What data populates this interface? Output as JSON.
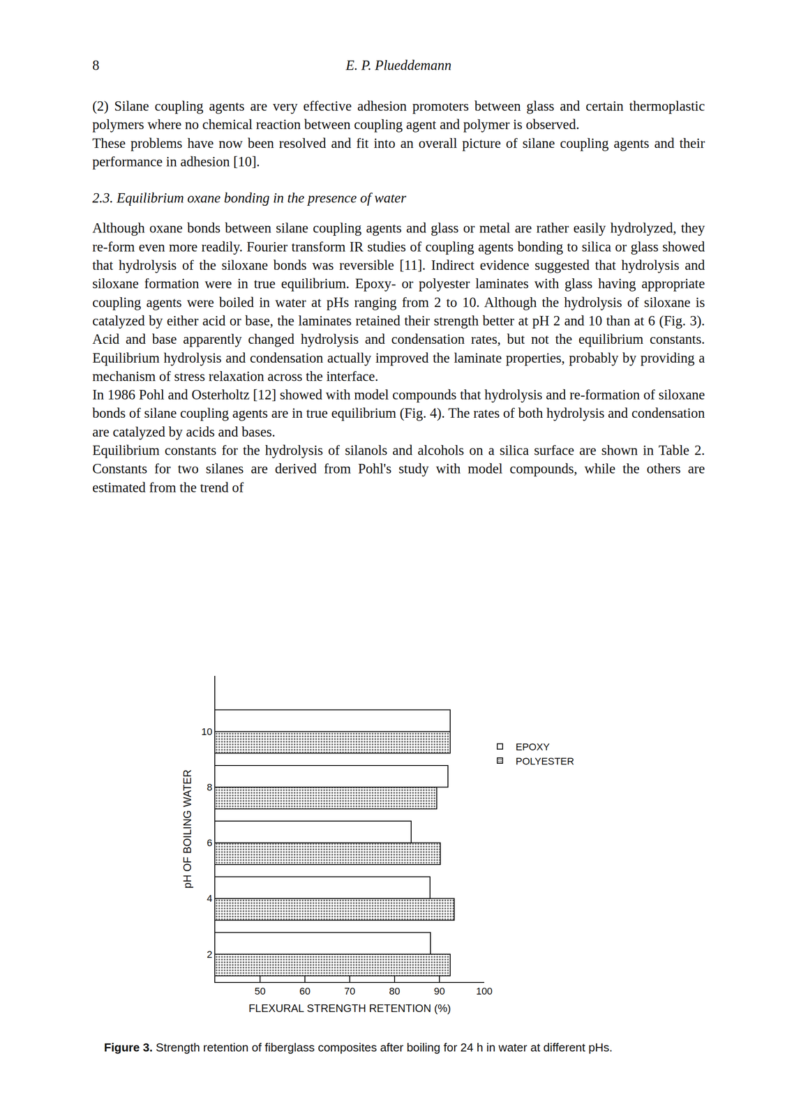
{
  "page": {
    "page_number": "8",
    "running_head": "E. P. Plueddemann",
    "blocks": [
      {
        "type": "paragraph",
        "text": "(2) Silane coupling agents are very effective adhesion promoters between glass and certain thermoplastic polymers where no chemical reaction between coupling agent and polymer is observed."
      },
      {
        "type": "paragraph",
        "text": "These problems have now been resolved and fit into an overall picture of silane coupling agents and their performance in adhesion [10]."
      },
      {
        "type": "heading",
        "text": "2.3. Equilibrium oxane bonding in the presence of water"
      },
      {
        "type": "paragraph",
        "text": "Although oxane bonds between silane coupling agents and glass or metal are rather easily hydrolyzed, they re-form even more readily. Fourier transform IR studies of coupling agents bonding to silica or glass showed that hydrolysis of the siloxane bonds was reversible [11]. Indirect evidence suggested that hydrolysis and siloxane formation were in true equilibrium. Epoxy- or polyester laminates with glass having appropriate coupling agents were boiled in water at pHs ranging from 2 to 10. Although the hydrolysis of siloxane is catalyzed by either acid or base, the laminates retained their strength better at pH 2 and 10 than at 6 (Fig. 3). Acid and base apparently changed hydrolysis and condensation rates, but not the equilibrium constants. Equilibrium hydrolysis and condensation actually improved the laminate properties, probably by providing a mechanism of stress relaxation across the interface."
      },
      {
        "type": "paragraph",
        "text": "In 1986 Pohl and Osterholtz [12] showed with model compounds that hydrolysis and re-formation of siloxane bonds of silane coupling agents are in true equilibrium (Fig. 4). The rates of both hydrolysis and condensation are catalyzed by acids and bases."
      },
      {
        "type": "paragraph",
        "text": "Equilibrium constants for the hydrolysis of silanols and alcohols on a silica surface are shown in Table 2. Constants for two silanes are derived from Pohl's study with model compounds, while the others are estimated from the trend of"
      }
    ],
    "caption": {
      "label": "Figure 3.",
      "text": "Strength retention of fiberglass composites after boiling for 24 h in water at different pHs."
    }
  },
  "chart_data": {
    "type": "bar",
    "orientation": "horizontal",
    "x_label": "FLEXURAL STRENGTH RETENTION (%)",
    "y_label": "pH OF BOILING WATER",
    "categories": [
      "2",
      "4",
      "6",
      "8",
      "10"
    ],
    "series": [
      {
        "name": "EPOXY",
        "color": "#ffffff",
        "values": [
          88.0,
          87.9,
          83.7,
          91.9,
          92.4
        ]
      },
      {
        "name": "POLYESTER",
        "color": "#c8c8c8",
        "values": [
          92.4,
          93.3,
          90.2,
          89.4,
          92.4
        ]
      }
    ],
    "xlim": [
      40,
      100
    ],
    "xticks": [
      50,
      60,
      70,
      80,
      90,
      100
    ],
    "grid": false,
    "legend": "upper right",
    "data_labels": false
  }
}
